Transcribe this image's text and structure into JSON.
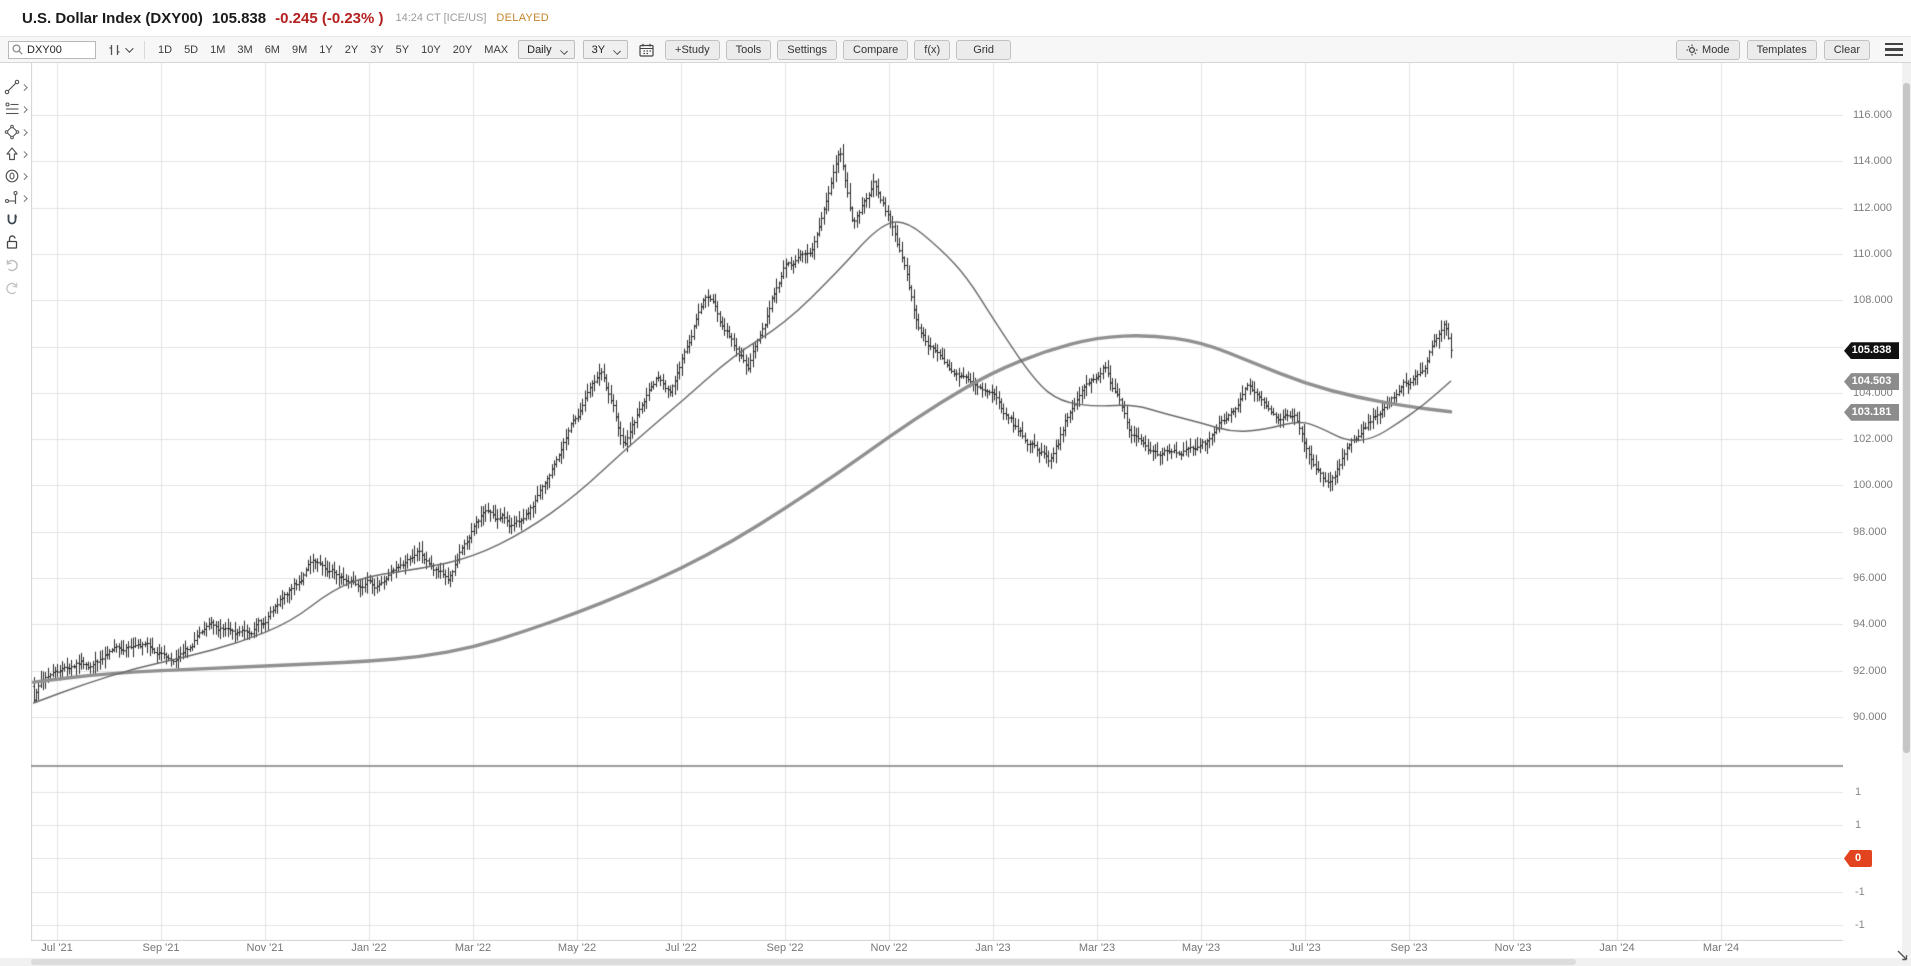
{
  "header": {
    "title": "U.S. Dollar Index (DXY00)",
    "last": "105.838",
    "change": "-0.245 (-0.23% )",
    "timestamp": "14:24 CT [ICE/US]",
    "delayed": "DELAYED"
  },
  "toolbar": {
    "search_value": "DXY00",
    "ranges": [
      "1D",
      "5D",
      "1M",
      "3M",
      "6M",
      "9M",
      "1Y",
      "2Y",
      "3Y",
      "5Y",
      "10Y",
      "20Y",
      "MAX"
    ],
    "interval": "Daily",
    "period": "3Y",
    "buttons": [
      "+Study",
      "Tools",
      "Settings",
      "Compare",
      "f(x)",
      "Grid"
    ],
    "mode_label": "Mode",
    "templates_label": "Templates",
    "clear_label": "Clear"
  },
  "sidebar_tools": [
    "trend-line",
    "fibonacci",
    "shapes",
    "arrow",
    "annotation",
    "measure",
    "magnet",
    "unlock",
    "undo",
    "redo"
  ],
  "chart_data": {
    "type": "ohlc-bar",
    "symbol": "DXY00",
    "title": "U.S. Dollar Index",
    "interval": "Daily",
    "range": "3Y",
    "last_price": 105.838,
    "x_unit": "months since 2021-06-01",
    "price_axis": {
      "tick_min": 90,
      "tick_max": 116,
      "tick_step": 2
    },
    "price_ticks": [
      "116.000",
      "114.000",
      "112.000",
      "110.000",
      "108.000",
      "106.000",
      "104.000",
      "102.000",
      "100.000",
      "98.000",
      "96.000",
      "94.000",
      "92.000",
      "90.000"
    ],
    "time_labels": [
      "Jul '21",
      "Sep '21",
      "Nov '21",
      "Jan '22",
      "Mar '22",
      "May '22",
      "Jul '22",
      "Sep '22",
      "Nov '22",
      "Jan '23",
      "Mar '23",
      "May '23",
      "Jul '23",
      "Sep '23",
      "Nov '23",
      "Jan '24",
      "Mar '24"
    ],
    "close_anchors": [
      [
        0.55,
        91.0
      ],
      [
        0.8,
        91.8
      ],
      [
        1.2,
        92.2
      ],
      [
        1.8,
        92.4
      ],
      [
        2.4,
        93.2
      ],
      [
        2.9,
        92.9
      ],
      [
        3.3,
        92.4
      ],
      [
        4.0,
        94.0
      ],
      [
        4.4,
        93.5
      ],
      [
        5.0,
        94.1
      ],
      [
        5.9,
        96.6
      ],
      [
        6.5,
        96.0
      ],
      [
        7.2,
        95.7
      ],
      [
        7.9,
        97.1
      ],
      [
        8.5,
        95.9
      ],
      [
        9.2,
        98.9
      ],
      [
        9.9,
        98.2
      ],
      [
        10.4,
        100.1
      ],
      [
        11.0,
        103.1
      ],
      [
        11.45,
        104.9
      ],
      [
        11.9,
        101.8
      ],
      [
        12.5,
        104.7
      ],
      [
        12.8,
        104.1
      ],
      [
        13.5,
        108.4
      ],
      [
        13.8,
        106.9
      ],
      [
        14.3,
        105.1
      ],
      [
        15.0,
        109.6
      ],
      [
        15.5,
        109.9
      ],
      [
        16.05,
        114.5
      ],
      [
        16.3,
        111.3
      ],
      [
        16.7,
        113.0
      ],
      [
        17.1,
        111.0
      ],
      [
        17.6,
        106.6
      ],
      [
        18.1,
        105.2
      ],
      [
        18.6,
        104.3
      ],
      [
        19.0,
        103.8
      ],
      [
        19.6,
        102.0
      ],
      [
        20.1,
        101.2
      ],
      [
        20.65,
        103.9
      ],
      [
        21.15,
        105.2
      ],
      [
        21.6,
        102.5
      ],
      [
        22.1,
        101.5
      ],
      [
        22.6,
        101.2
      ],
      [
        23.1,
        101.9
      ],
      [
        23.9,
        104.2
      ],
      [
        24.4,
        102.9
      ],
      [
        24.8,
        102.9
      ],
      [
        25.1,
        101.1
      ],
      [
        25.45,
        99.9
      ],
      [
        25.8,
        101.6
      ],
      [
        26.3,
        102.9
      ],
      [
        26.9,
        104.3
      ],
      [
        27.3,
        105.2
      ],
      [
        27.55,
        106.4
      ],
      [
        27.68,
        107.2
      ],
      [
        27.8,
        105.838
      ]
    ],
    "studies": [
      {
        "name": "SMA-50",
        "color": "#686868",
        "line_width": 1.4,
        "points": [
          [
            0.55,
            90.6
          ],
          [
            1.5,
            91.4
          ],
          [
            2.5,
            92.1
          ],
          [
            3.5,
            92.6
          ],
          [
            4.5,
            93.2
          ],
          [
            5.5,
            94.1
          ],
          [
            6.3,
            95.5
          ],
          [
            7.0,
            96.1
          ],
          [
            8.0,
            96.4
          ],
          [
            9.0,
            96.9
          ],
          [
            10.0,
            98.0
          ],
          [
            11.0,
            99.6
          ],
          [
            12.0,
            101.7
          ],
          [
            13.0,
            103.6
          ],
          [
            14.0,
            105.6
          ],
          [
            15.0,
            107.0
          ],
          [
            16.0,
            109.2
          ],
          [
            16.8,
            111.2
          ],
          [
            17.3,
            111.5
          ],
          [
            18.0,
            110.2
          ],
          [
            18.5,
            109.0
          ],
          [
            19.0,
            107.2
          ],
          [
            19.8,
            104.5
          ],
          [
            20.3,
            103.6
          ],
          [
            21.0,
            103.4
          ],
          [
            21.7,
            103.5
          ],
          [
            22.3,
            103.1
          ],
          [
            23.0,
            102.7
          ],
          [
            23.6,
            102.3
          ],
          [
            24.2,
            102.4
          ],
          [
            24.9,
            102.8
          ],
          [
            25.3,
            102.5
          ],
          [
            25.8,
            101.9
          ],
          [
            26.3,
            102.0
          ],
          [
            26.8,
            102.7
          ],
          [
            27.3,
            103.5
          ],
          [
            27.8,
            104.503
          ]
        ]
      },
      {
        "name": "SMA-200",
        "color": "#909090",
        "line_width": 3.4,
        "points": [
          [
            0.55,
            91.5
          ],
          [
            2.0,
            91.9
          ],
          [
            4.0,
            92.1
          ],
          [
            6.0,
            92.3
          ],
          [
            7.0,
            92.4
          ],
          [
            8.0,
            92.6
          ],
          [
            9.0,
            93.0
          ],
          [
            10.0,
            93.7
          ],
          [
            11.0,
            94.5
          ],
          [
            12.0,
            95.4
          ],
          [
            13.0,
            96.4
          ],
          [
            14.0,
            97.6
          ],
          [
            15.0,
            99.0
          ],
          [
            16.0,
            100.5
          ],
          [
            17.0,
            102.1
          ],
          [
            18.0,
            103.6
          ],
          [
            19.0,
            104.9
          ],
          [
            20.0,
            105.8
          ],
          [
            21.0,
            106.4
          ],
          [
            22.0,
            106.5
          ],
          [
            23.0,
            106.2
          ],
          [
            24.0,
            105.3
          ],
          [
            25.0,
            104.4
          ],
          [
            26.0,
            103.8
          ],
          [
            27.0,
            103.4
          ],
          [
            27.8,
            103.181
          ]
        ]
      }
    ],
    "badges": [
      {
        "name": "last-price",
        "label": "105.838",
        "value": 105.838,
        "bg": "#111111"
      },
      {
        "name": "sma50-value",
        "label": "104.503",
        "value": 104.503,
        "bg": "#8c8c8c"
      },
      {
        "name": "sma200-value",
        "label": "103.181",
        "value": 103.181,
        "bg": "#8c8c8c"
      }
    ],
    "sub_panel": {
      "ticks": [
        {
          "label": "1",
          "badge": false
        },
        {
          "label": "1",
          "badge": false
        },
        {
          "label": "0",
          "badge": true,
          "badge_bg": "#e2441f"
        },
        {
          "label": "-1",
          "badge": false
        },
        {
          "label": "-1",
          "badge": false
        }
      ]
    },
    "colors": {
      "bars": "#2b2b2b",
      "grid": "#e3e3e3",
      "divider": "#9b9b9b"
    }
  }
}
